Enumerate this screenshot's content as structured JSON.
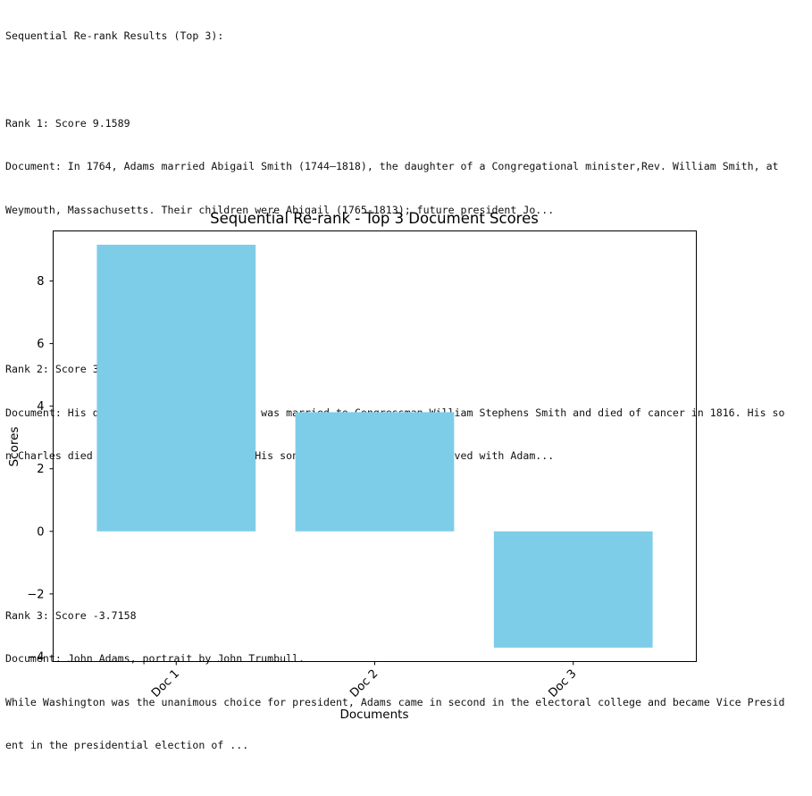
{
  "output": {
    "header": "Sequential Re-rank Results (Top 3):",
    "results": [
      {
        "rank_line": "Rank 1: Score 9.1589",
        "doc_lines": [
          "Document: In 1764, Adams married Abigail Smith (1744–1818), the daughter of a Congregational minister,Rev. William Smith, at",
          "Weymouth, Massachusetts. Their children were Abigail (1765-1813); future president Jo..."
        ]
      },
      {
        "rank_line": "Rank 2: Score 3.8088",
        "doc_lines": [
          "Document: His daughter Abigail (\"Nabby\") was married to Congressman William Stephens Smith and died of cancer in 1816. His so",
          "n Charles died as an alcoholic in 1800. His son Thomas and his family lived with Adam..."
        ]
      },
      {
        "rank_line": "Rank 3: Score -3.7158",
        "doc_lines": [
          "Document: John Adams, portrait by John Trumbull.",
          "While Washington was the unanimous choice for president, Adams came in second in the electoral college and became Vice Presid",
          "ent in the presidential election of ..."
        ]
      }
    ]
  },
  "chart_data": {
    "type": "bar",
    "title": "Sequential Re-rank - Top 3 Document Scores",
    "xlabel": "Documents",
    "ylabel": "Scores",
    "categories": [
      "Doc 1",
      "Doc 2",
      "Doc 3"
    ],
    "values": [
      9.1589,
      3.8088,
      -3.7158
    ],
    "ylim": [
      -4.16,
      9.6
    ],
    "yticks": [
      -4,
      -2,
      0,
      2,
      4,
      6,
      8
    ],
    "ytick_labels": [
      "−4",
      "−2",
      "0",
      "2",
      "4",
      "6",
      "8"
    ],
    "bar_color": "#7ecde8",
    "grid": false,
    "xtick_rotation_deg": 45
  }
}
